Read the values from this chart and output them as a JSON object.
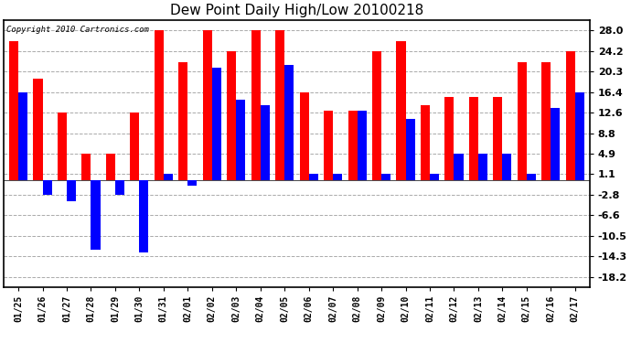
{
  "title": "Dew Point Daily High/Low 20100218",
  "copyright": "Copyright 2010 Cartronics.com",
  "dates": [
    "01/25",
    "01/26",
    "01/27",
    "01/28",
    "01/29",
    "01/30",
    "01/31",
    "02/01",
    "02/02",
    "02/03",
    "02/04",
    "02/05",
    "02/06",
    "02/07",
    "02/08",
    "02/09",
    "02/10",
    "02/11",
    "02/12",
    "02/13",
    "02/14",
    "02/15",
    "02/16",
    "02/17"
  ],
  "highs": [
    26.0,
    19.0,
    12.6,
    4.9,
    4.9,
    12.6,
    28.0,
    22.0,
    28.0,
    24.2,
    28.0,
    28.0,
    16.4,
    13.0,
    13.0,
    24.2,
    26.0,
    14.0,
    15.5,
    15.5,
    15.5,
    22.0,
    22.0,
    24.2
  ],
  "lows": [
    16.4,
    -2.8,
    -4.0,
    -13.0,
    -2.8,
    -13.5,
    1.1,
    -1.0,
    21.0,
    15.0,
    14.0,
    21.5,
    1.1,
    1.1,
    13.0,
    1.1,
    11.5,
    1.1,
    4.9,
    4.9,
    4.9,
    1.1,
    13.5,
    16.4
  ],
  "high_color": "#ff0000",
  "low_color": "#0000ff",
  "bg_color": "#ffffff",
  "grid_color": "#aaaaaa",
  "yticks": [
    28.0,
    24.2,
    20.3,
    16.4,
    12.6,
    8.8,
    4.9,
    1.1,
    -2.8,
    -6.6,
    -10.5,
    -14.3,
    -18.2
  ],
  "ylim": [
    -20.0,
    30.0
  ],
  "bar_width": 0.38,
  "figwidth": 6.9,
  "figheight": 3.75,
  "dpi": 100
}
